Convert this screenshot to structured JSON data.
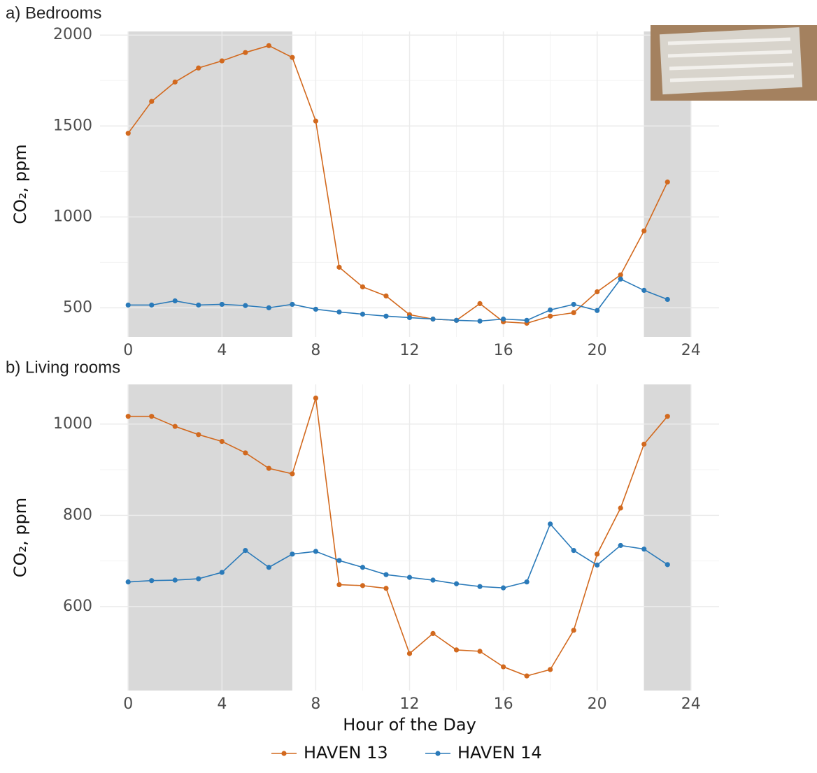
{
  "chart_data": [
    {
      "type": "line",
      "title": "a) Bedrooms",
      "y_label": "CO₂, ppm",
      "x": [
        0,
        1,
        2,
        3,
        4,
        5,
        6,
        7,
        8,
        9,
        10,
        11,
        12,
        13,
        14,
        15,
        16,
        17,
        18,
        19,
        20,
        21,
        22,
        23
      ],
      "xlim": [
        -1.2,
        25.2
      ],
      "xticks": [
        0,
        4,
        8,
        12,
        16,
        20,
        24
      ],
      "ylim": [
        340,
        2020
      ],
      "yticks": [
        500,
        1000,
        1500,
        2000
      ],
      "shaded": [
        [
          0,
          7
        ],
        [
          22,
          24
        ]
      ],
      "grid": true,
      "series": [
        {
          "name": "HAVEN 13",
          "color": "#d2691e",
          "values": [
            1460,
            1635,
            1742,
            1819,
            1858,
            1904,
            1942,
            1877,
            1527,
            723,
            615,
            565,
            462,
            438,
            431,
            523,
            423,
            415,
            454,
            473,
            588,
            681,
            923,
            1192
          ]
        },
        {
          "name": "HAVEN 14",
          "color": "#2a7ab9",
          "values": [
            515,
            515,
            538,
            515,
            519,
            512,
            500,
            519,
            492,
            477,
            465,
            454,
            446,
            438,
            431,
            427,
            438,
            431,
            488,
            519,
            485,
            658,
            596,
            546
          ]
        }
      ]
    },
    {
      "type": "line",
      "title": "b) Living rooms",
      "y_label": "CO₂, ppm",
      "x_label": "Hour of the Day",
      "x": [
        0,
        1,
        2,
        3,
        4,
        5,
        6,
        7,
        8,
        9,
        10,
        11,
        12,
        13,
        14,
        15,
        16,
        17,
        18,
        19,
        20,
        21,
        22,
        23
      ],
      "xlim": [
        -1.2,
        25.2
      ],
      "xticks": [
        0,
        4,
        8,
        12,
        16,
        20,
        24
      ],
      "ylim": [
        416,
        1087
      ],
      "yticks": [
        600,
        800,
        1000
      ],
      "shaded": [
        [
          0,
          7
        ],
        [
          22,
          24
        ]
      ],
      "grid": true,
      "series": [
        {
          "color": "#d2691e",
          "values": [
            1017,
            1017,
            995,
            977,
            962,
            937,
            903,
            891,
            1057,
            648,
            646,
            640,
            497,
            541,
            505,
            502,
            468,
            448,
            462,
            548,
            715,
            816,
            956,
            1017
          ]
        },
        {
          "color": "#2a7ab9",
          "values": [
            654,
            657,
            658,
            661,
            675,
            723,
            686,
            715,
            721,
            701,
            686,
            670,
            664,
            658,
            650,
            644,
            641,
            654,
            781,
            723,
            691,
            734,
            726,
            692
          ]
        }
      ]
    }
  ]
}
